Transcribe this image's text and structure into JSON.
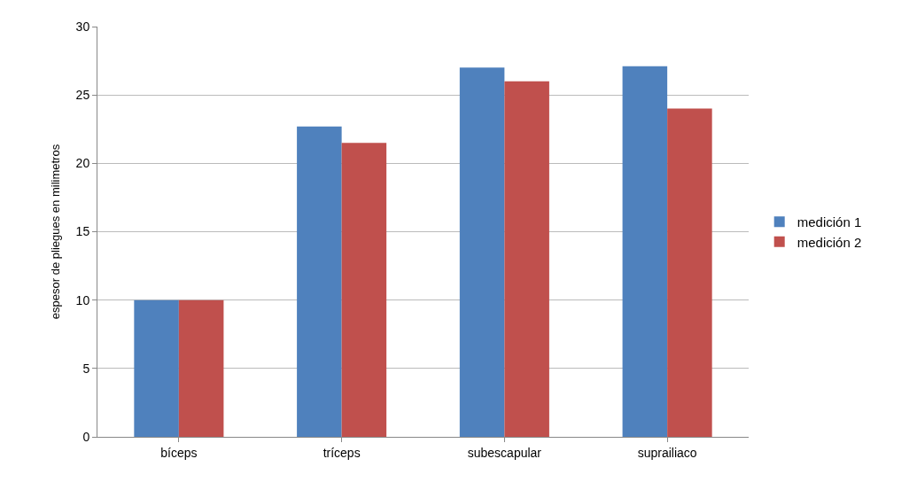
{
  "chart_data": {
    "type": "bar",
    "ylabel": "espesor de pliegues en milimetros",
    "categories": [
      "bíceps",
      "tríceps",
      "subescapular",
      "suprailiaco"
    ],
    "series": [
      {
        "name": "medición 1",
        "color": "#4f81bd",
        "values": [
          10,
          22.7,
          27,
          27.1
        ]
      },
      {
        "name": "medición 2",
        "color": "#c0504d",
        "values": [
          10,
          21.5,
          26,
          24
        ]
      }
    ],
    "ylim": [
      0,
      30
    ],
    "yticks": [
      0,
      5,
      10,
      15,
      20,
      25,
      30
    ],
    "grid": "y",
    "legend": "right"
  }
}
